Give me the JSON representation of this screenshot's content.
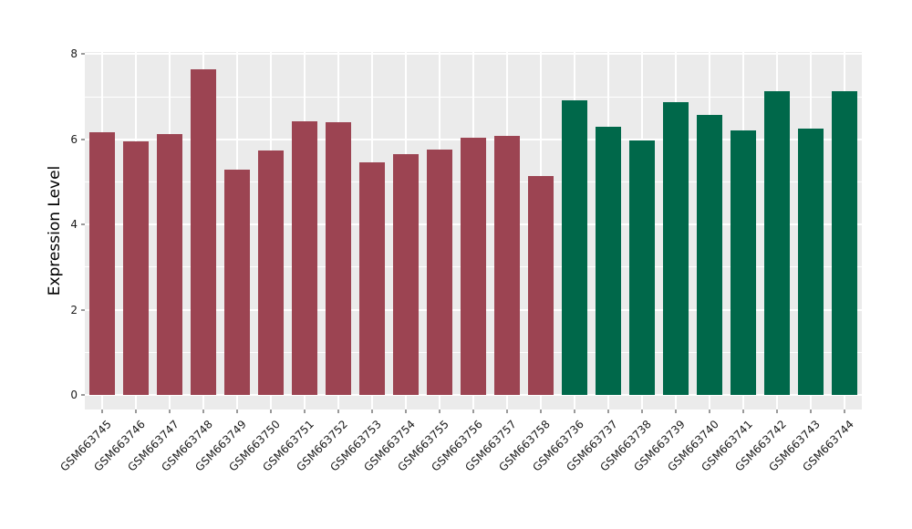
{
  "chart_data": {
    "type": "bar",
    "title": "",
    "xlabel": "",
    "ylabel": "Expression Level",
    "ylim": [
      -0.35,
      8.05
    ],
    "yticks": [
      0,
      2,
      4,
      6,
      8
    ],
    "yticks_minor": [
      1,
      3,
      5,
      7
    ],
    "grid": "white major+minor horizontal, white vertical at bar centers, on gray panel",
    "legend": false,
    "panel_background": "#EBEBEB",
    "gridline_color": "#FFFFFF",
    "series": [
      {
        "name": "group-maroon",
        "color": "#9C4452",
        "labels": [
          "GSM663745",
          "GSM663746",
          "GSM663747",
          "GSM663748",
          "GSM663749",
          "GSM663750",
          "GSM663751",
          "GSM663752",
          "GSM663753",
          "GSM663754",
          "GSM663755",
          "GSM663756",
          "GSM663757",
          "GSM663758"
        ],
        "values": [
          6.17,
          5.95,
          6.12,
          7.65,
          5.29,
          5.73,
          6.43,
          6.41,
          5.46,
          5.66,
          5.77,
          6.03,
          6.09,
          5.13
        ]
      },
      {
        "name": "group-green",
        "color": "#00684A",
        "labels": [
          "GSM663736",
          "GSM663737",
          "GSM663738",
          "GSM663739",
          "GSM663740",
          "GSM663741",
          "GSM663742",
          "GSM663743",
          "GSM663744"
        ],
        "values": [
          6.92,
          6.3,
          5.97,
          6.88,
          6.58,
          6.22,
          7.14,
          6.25,
          7.14
        ]
      }
    ]
  }
}
